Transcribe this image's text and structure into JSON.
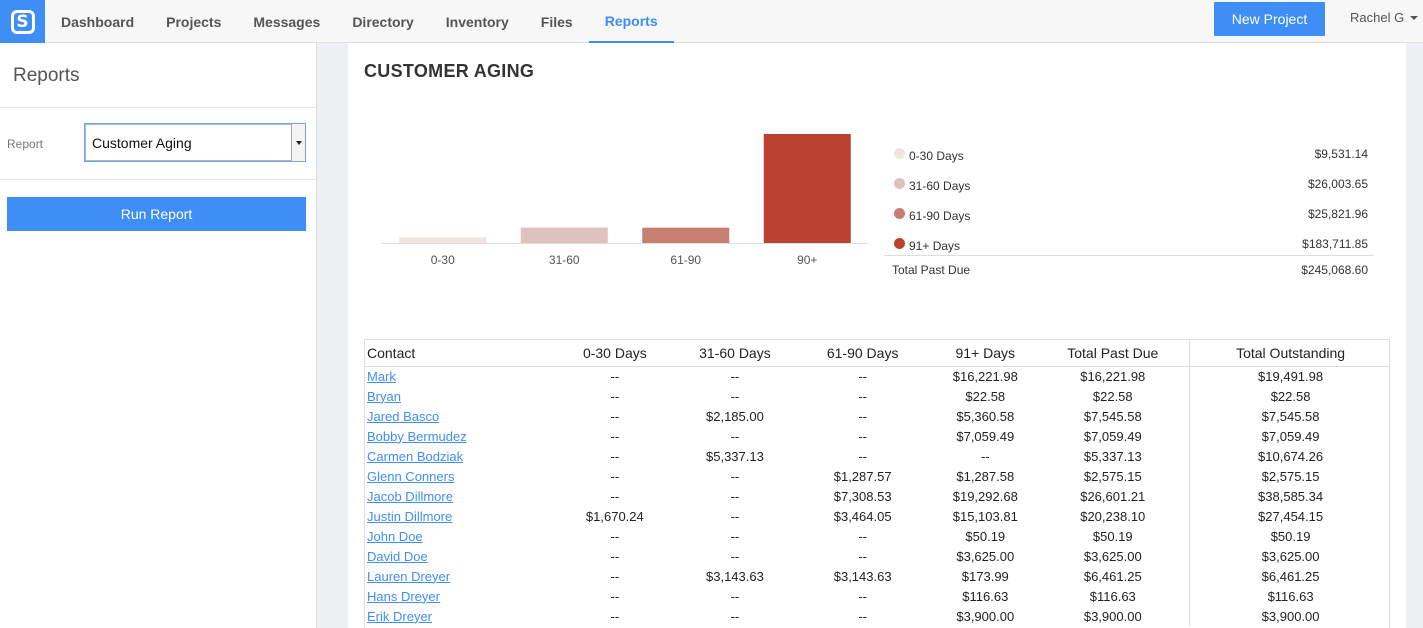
{
  "nav": {
    "logo_letter": "S",
    "items": [
      "Dashboard",
      "Projects",
      "Messages",
      "Directory",
      "Inventory",
      "Files",
      "Reports"
    ],
    "active": "Reports",
    "new_project_label": "New Project",
    "user_name": "Rachel G"
  },
  "sidebar": {
    "title": "Reports",
    "report_label": "Report",
    "report_selected": "Customer Aging",
    "run_label": "Run Report"
  },
  "main": {
    "title": "CUSTOMER AGING"
  },
  "colors": {
    "accent": "#3f8ef5",
    "bucket_0_30": "#efe6e4",
    "bucket_31_60": "#dfc2bb",
    "bucket_61_90": "#c77f71",
    "bucket_91_plus": "#ba4130"
  },
  "chart_data": {
    "type": "bar",
    "categories": [
      "0-30",
      "31-60",
      "61-90",
      "90+"
    ],
    "values": [
      9531.14,
      26003.65,
      25821.96,
      183711.85
    ],
    "colors": [
      "#efe6e4",
      "#dfc2bb",
      "#c77f71",
      "#ba4130"
    ],
    "ylim": [
      0,
      183711.85
    ],
    "grid": false,
    "legend": {
      "placement": "right",
      "entries": [
        {
          "label": "0-30 Days",
          "value": "$9,531.14"
        },
        {
          "label": "31-60 Days",
          "value": "$26,003.65"
        },
        {
          "label": "61-90 Days",
          "value": "$25,821.96"
        },
        {
          "label": "91+ Days",
          "value": "$183,711.85"
        }
      ],
      "total_label": "Total Past Due",
      "total_value": "$245,068.60"
    }
  },
  "table": {
    "headers": [
      "Contact",
      "0-30 Days",
      "31-60 Days",
      "61-90 Days",
      "91+ Days",
      "Total Past Due",
      "Total Outstanding"
    ],
    "rows": [
      [
        "Mark",
        "--",
        "--",
        "--",
        "$16,221.98",
        "$16,221.98",
        "$19,491.98"
      ],
      [
        "Bryan",
        "--",
        "--",
        "--",
        "$22.58",
        "$22.58",
        "$22.58"
      ],
      [
        "Jared Basco",
        "--",
        "$2,185.00",
        "--",
        "$5,360.58",
        "$7,545.58",
        "$7,545.58"
      ],
      [
        "Bobby Bermudez",
        "--",
        "--",
        "--",
        "$7,059.49",
        "$7,059.49",
        "$7,059.49"
      ],
      [
        "Carmen Bodziak",
        "--",
        "$5,337.13",
        "--",
        "--",
        "$5,337.13",
        "$10,674.26"
      ],
      [
        "Glenn Conners",
        "--",
        "--",
        "$1,287.57",
        "$1,287.58",
        "$2,575.15",
        "$2,575.15"
      ],
      [
        "Jacob Dillmore",
        "--",
        "--",
        "$7,308.53",
        "$19,292.68",
        "$26,601.21",
        "$38,585.34"
      ],
      [
        "Justin Dillmore",
        "$1,670.24",
        "--",
        "$3,464.05",
        "$15,103.81",
        "$20,238.10",
        "$27,454.15"
      ],
      [
        "John Doe",
        "--",
        "--",
        "--",
        "$50.19",
        "$50.19",
        "$50.19"
      ],
      [
        "David Doe",
        "--",
        "--",
        "--",
        "$3,625.00",
        "$3,625.00",
        "$3,625.00"
      ],
      [
        "Lauren Dreyer",
        "--",
        "$3,143.63",
        "$3,143.63",
        "$173.99",
        "$6,461.25",
        "$6,461.25"
      ],
      [
        "Hans Dreyer",
        "--",
        "--",
        "--",
        "$116.63",
        "$116.63",
        "$116.63"
      ],
      [
        "Erik Dreyer",
        "--",
        "--",
        "--",
        "$3,900.00",
        "$3,900.00",
        "$3,900.00"
      ]
    ]
  }
}
